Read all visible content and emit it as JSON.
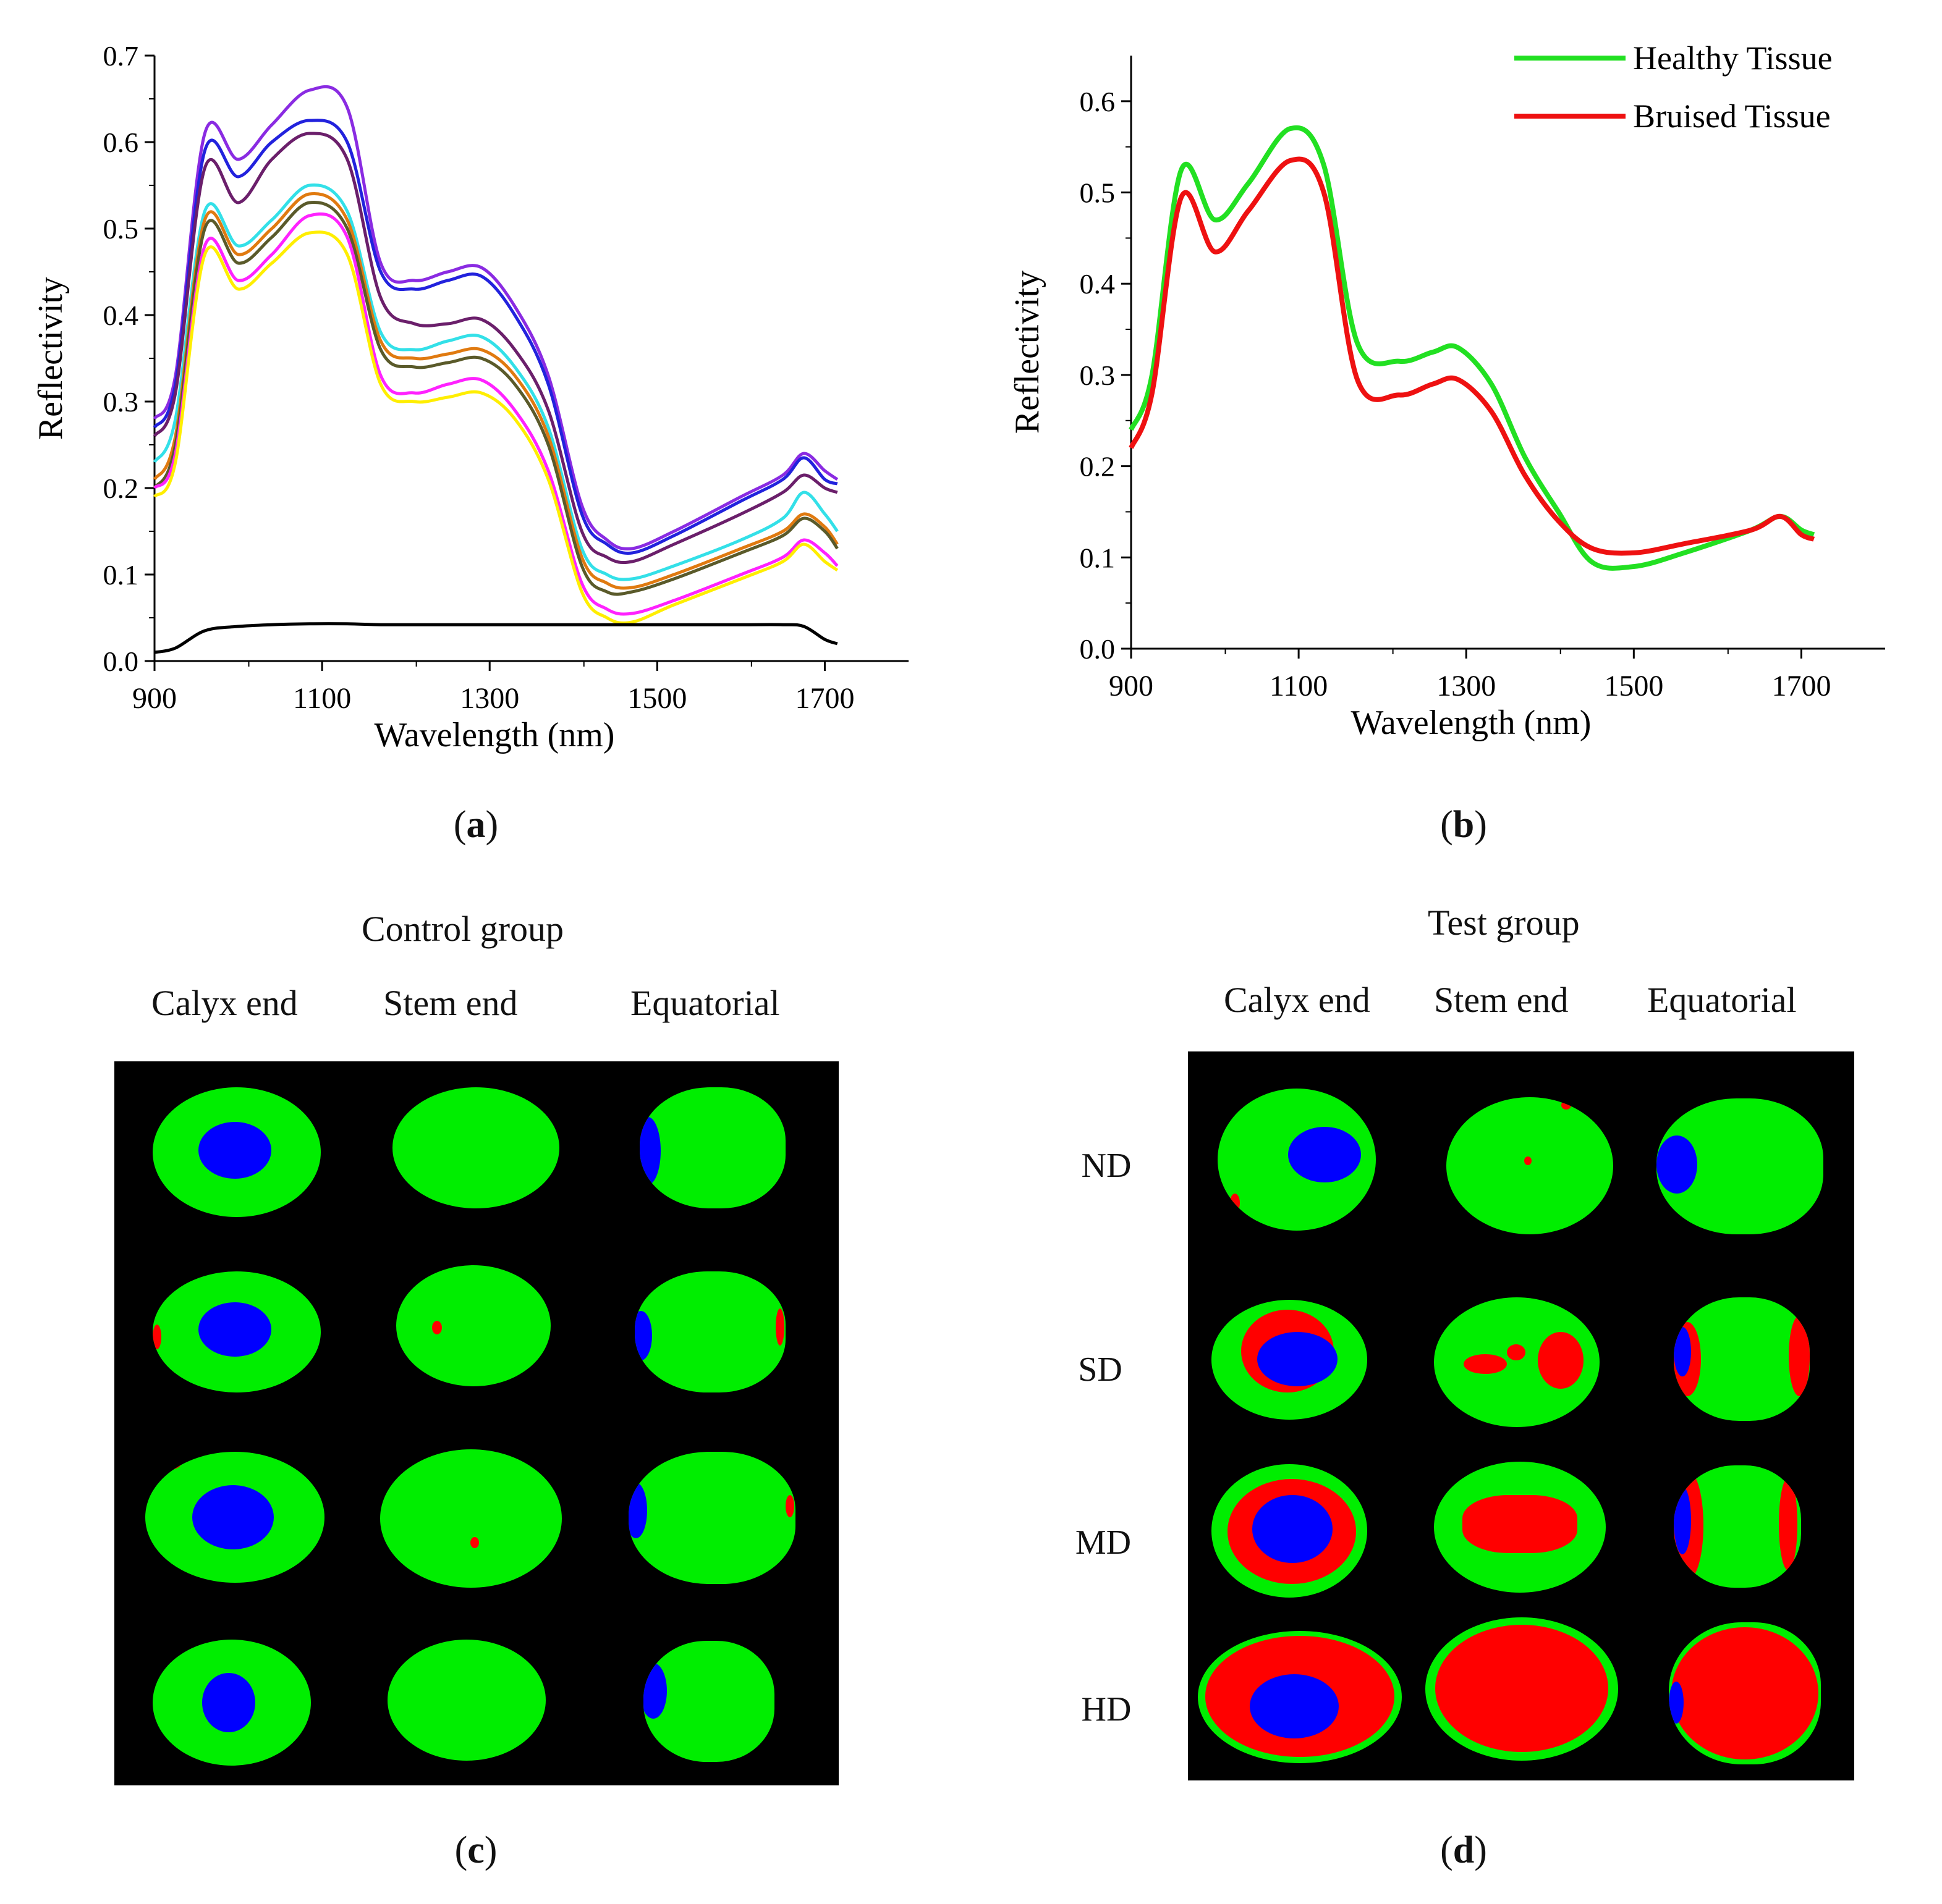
{
  "chart_data": [
    {
      "type": "line",
      "panel": "a",
      "xlabel": "Wavelength (nm)",
      "ylabel": "Reflectivity",
      "xlim": [
        900,
        1800
      ],
      "ylim": [
        0,
        0.7
      ],
      "xticks": [
        900,
        1100,
        1300,
        1500,
        1700
      ],
      "yticks": [
        0.0,
        0.1,
        0.2,
        0.3,
        0.4,
        0.5,
        0.6,
        0.7
      ],
      "x": [
        900,
        925,
        960,
        1000,
        1040,
        1085,
        1130,
        1170,
        1210,
        1250,
        1290,
        1330,
        1370,
        1410,
        1440,
        1470,
        1520,
        1600,
        1650,
        1675,
        1700,
        1715
      ],
      "series": [
        {
          "name": "curve-violet",
          "color": "#8a2be2",
          "values": [
            0.28,
            0.33,
            0.61,
            0.58,
            0.62,
            0.66,
            0.64,
            0.46,
            0.44,
            0.45,
            0.455,
            0.41,
            0.33,
            0.18,
            0.14,
            0.13,
            0.15,
            0.19,
            0.215,
            0.24,
            0.22,
            0.21
          ]
        },
        {
          "name": "curve-blue",
          "color": "#2222dd",
          "values": [
            0.27,
            0.32,
            0.59,
            0.56,
            0.6,
            0.625,
            0.6,
            0.45,
            0.43,
            0.44,
            0.445,
            0.4,
            0.32,
            0.17,
            0.135,
            0.125,
            0.145,
            0.185,
            0.21,
            0.235,
            0.21,
            0.205
          ]
        },
        {
          "name": "curve-purple",
          "color": "#6b1f6b",
          "values": [
            0.26,
            0.31,
            0.57,
            0.53,
            0.58,
            0.61,
            0.58,
            0.42,
            0.39,
            0.39,
            0.395,
            0.36,
            0.29,
            0.15,
            0.12,
            0.115,
            0.135,
            0.17,
            0.195,
            0.215,
            0.2,
            0.195
          ]
        },
        {
          "name": "curve-cyan",
          "color": "#33e0e8",
          "values": [
            0.23,
            0.28,
            0.52,
            0.48,
            0.51,
            0.55,
            0.52,
            0.38,
            0.36,
            0.37,
            0.375,
            0.34,
            0.27,
            0.13,
            0.1,
            0.095,
            0.11,
            0.14,
            0.165,
            0.195,
            0.17,
            0.15
          ]
        },
        {
          "name": "curve-orange",
          "color": "#e07a10",
          "values": [
            0.21,
            0.26,
            0.51,
            0.47,
            0.5,
            0.54,
            0.51,
            0.37,
            0.35,
            0.355,
            0.36,
            0.33,
            0.26,
            0.12,
            0.09,
            0.085,
            0.1,
            0.13,
            0.15,
            0.17,
            0.155,
            0.135
          ]
        },
        {
          "name": "curve-olive",
          "color": "#5a5a2a",
          "values": [
            0.2,
            0.25,
            0.5,
            0.46,
            0.49,
            0.53,
            0.5,
            0.36,
            0.34,
            0.345,
            0.35,
            0.32,
            0.25,
            0.11,
            0.08,
            0.08,
            0.095,
            0.125,
            0.145,
            0.165,
            0.15,
            0.13
          ]
        },
        {
          "name": "curve-magenta",
          "color": "#ff22ff",
          "values": [
            0.2,
            0.24,
            0.48,
            0.44,
            0.47,
            0.515,
            0.49,
            0.33,
            0.31,
            0.32,
            0.325,
            0.29,
            0.22,
            0.09,
            0.06,
            0.055,
            0.07,
            0.1,
            0.12,
            0.14,
            0.125,
            0.11
          ]
        },
        {
          "name": "curve-yellow",
          "color": "#ffee00",
          "values": [
            0.19,
            0.23,
            0.47,
            0.43,
            0.46,
            0.495,
            0.47,
            0.32,
            0.3,
            0.305,
            0.31,
            0.28,
            0.21,
            0.08,
            0.05,
            0.045,
            0.065,
            0.095,
            0.115,
            0.135,
            0.115,
            0.105
          ]
        },
        {
          "name": "curve-black-reference",
          "color": "#000000",
          "values": [
            0.01,
            0.015,
            0.035,
            0.04,
            0.042,
            0.043,
            0.043,
            0.042,
            0.042,
            0.042,
            0.042,
            0.042,
            0.042,
            0.042,
            0.042,
            0.042,
            0.042,
            0.042,
            0.042,
            0.04,
            0.025,
            0.02
          ]
        }
      ]
    },
    {
      "type": "line",
      "panel": "b",
      "xlabel": "Wavelength (nm)",
      "ylabel": "Reflectivity",
      "xlim": [
        900,
        1800
      ],
      "ylim": [
        0,
        0.65
      ],
      "xticks": [
        900,
        1100,
        1300,
        1500,
        1700
      ],
      "yticks": [
        0.0,
        0.1,
        0.2,
        0.3,
        0.4,
        0.5,
        0.6
      ],
      "legend": "top-right",
      "x": [
        900,
        925,
        960,
        1000,
        1040,
        1090,
        1130,
        1170,
        1220,
        1260,
        1290,
        1330,
        1370,
        1410,
        1450,
        1500,
        1560,
        1640,
        1675,
        1700,
        1715
      ],
      "series": [
        {
          "name": "Healthy Tissue",
          "color": "#22e022",
          "values": [
            0.24,
            0.3,
            0.525,
            0.47,
            0.51,
            0.57,
            0.53,
            0.335,
            0.315,
            0.325,
            0.33,
            0.29,
            0.21,
            0.15,
            0.095,
            0.09,
            0.105,
            0.13,
            0.145,
            0.13,
            0.125
          ]
        },
        {
          "name": "Bruised Tissue",
          "color": "#ee1111",
          "values": [
            0.22,
            0.28,
            0.495,
            0.435,
            0.48,
            0.535,
            0.5,
            0.295,
            0.278,
            0.29,
            0.295,
            0.26,
            0.19,
            0.14,
            0.11,
            0.105,
            0.115,
            0.13,
            0.145,
            0.125,
            0.12
          ]
        }
      ]
    }
  ],
  "panel_labels": {
    "a": "a",
    "b": "b",
    "c": "c",
    "d": "d"
  },
  "control": {
    "title": "Control group",
    "col_heads": [
      "Calyx end",
      "Stem end",
      "Equatorial"
    ]
  },
  "test": {
    "title": "Test group",
    "col_heads": [
      "Calyx end",
      "Stem end",
      "Equatorial"
    ],
    "row_heads": [
      "ND",
      "SD",
      "MD",
      "HD"
    ]
  },
  "colors": {
    "healthy": "#00ee00",
    "bruise": "#ff0000",
    "calyx": "#0000ff",
    "background": "#000000"
  }
}
